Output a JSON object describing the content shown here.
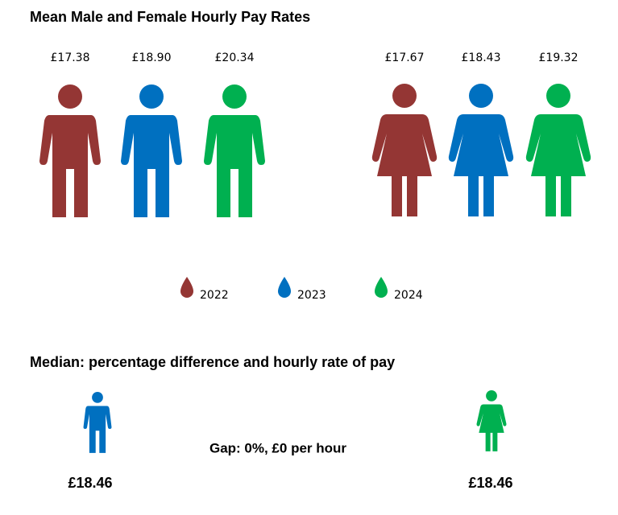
{
  "mean": {
    "title": "Mean Male and Female Hourly Pay Rates",
    "male": [
      "£17.38",
      "£18.90",
      "£20.34"
    ],
    "female": [
      "£17.67",
      "£18.43",
      "£19.32"
    ],
    "legend": [
      {
        "label": "2022",
        "color": "#943634"
      },
      {
        "label": "2023",
        "color": "#0070c0"
      },
      {
        "label": "2024",
        "color": "#00b050"
      }
    ]
  },
  "median": {
    "title": "Median: percentage difference and hourly rate of pay",
    "male": "£18.46",
    "male_color": "#0070c0",
    "female": "£18.46",
    "female_color": "#00b050",
    "gap": "Gap: 0%, £0 per hour"
  }
}
